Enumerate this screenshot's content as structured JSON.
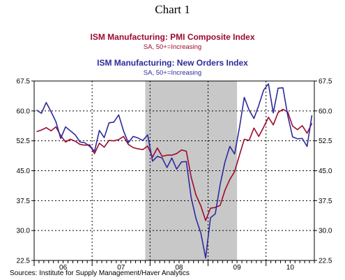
{
  "chart_data": {
    "type": "line",
    "title": "Chart 1",
    "series": [
      {
        "name": "ISM Manufacturing: PMI Composite Index",
        "subtitle": "SA, 50+=Increasing",
        "color": "#9c0a2e",
        "values": [
          54.8,
          55.2,
          55.8,
          55.0,
          56.0,
          53.8,
          52.2,
          52.9,
          52.4,
          51.6,
          51.4,
          51.5,
          49.3,
          51.9,
          50.9,
          52.6,
          52.5,
          52.8,
          53.6,
          51.6,
          50.8,
          50.5,
          50.3,
          51.2,
          48.4,
          50.7,
          48.6,
          48.9,
          48.9,
          49.3,
          50.2,
          49.9,
          43.4,
          38.9,
          36.2,
          32.5,
          35.6,
          35.8,
          36.3,
          40.1,
          42.8,
          44.8,
          48.9,
          52.9,
          52.6,
          55.7,
          53.6,
          55.9,
          58.4,
          56.5,
          59.6,
          60.4,
          59.7,
          56.2,
          55.3,
          56.3,
          54.4,
          56.9
        ]
      },
      {
        "name": "ISM Manufacturing: New Orders Index",
        "subtitle": "SA, 50+=Increasing",
        "color": "#2d2a9c",
        "values": [
          60.2,
          59.4,
          62.1,
          59.8,
          57.3,
          53.1,
          56.0,
          55.0,
          54.0,
          52.2,
          52.0,
          51.1,
          49.9,
          55.1,
          53.3,
          57.0,
          57.2,
          59.0,
          55.0,
          52.0,
          53.6,
          53.2,
          52.6,
          54.0,
          47.4,
          48.6,
          48.2,
          45.8,
          48.2,
          45.4,
          47.2,
          47.3,
          38.3,
          33.0,
          29.4,
          23.1,
          33.2,
          34.2,
          41.5,
          47.2,
          51.1,
          49.2,
          55.8,
          63.4,
          60.2,
          58.1,
          61.4,
          65.2,
          66.8,
          59.5,
          65.7,
          65.8,
          58.8,
          53.5,
          53.0,
          53.1,
          51.1,
          58.9
        ]
      }
    ],
    "x_start_month": "2006-01",
    "x_labels": [
      "06",
      "07",
      "08",
      "09",
      "10"
    ],
    "yticks": [
      "22.5",
      "30.0",
      "37.5",
      "45.0",
      "52.5",
      "60.0",
      "67.5"
    ],
    "ylim": [
      22.5,
      67.5
    ],
    "recession_shading": {
      "start": "2007-12",
      "end": "2009-06"
    },
    "grid": "vertical dashed at year boundaries, horizontal dashed at ticks",
    "source": "Sources:  Institute for Supply Management/Haver Analytics"
  }
}
